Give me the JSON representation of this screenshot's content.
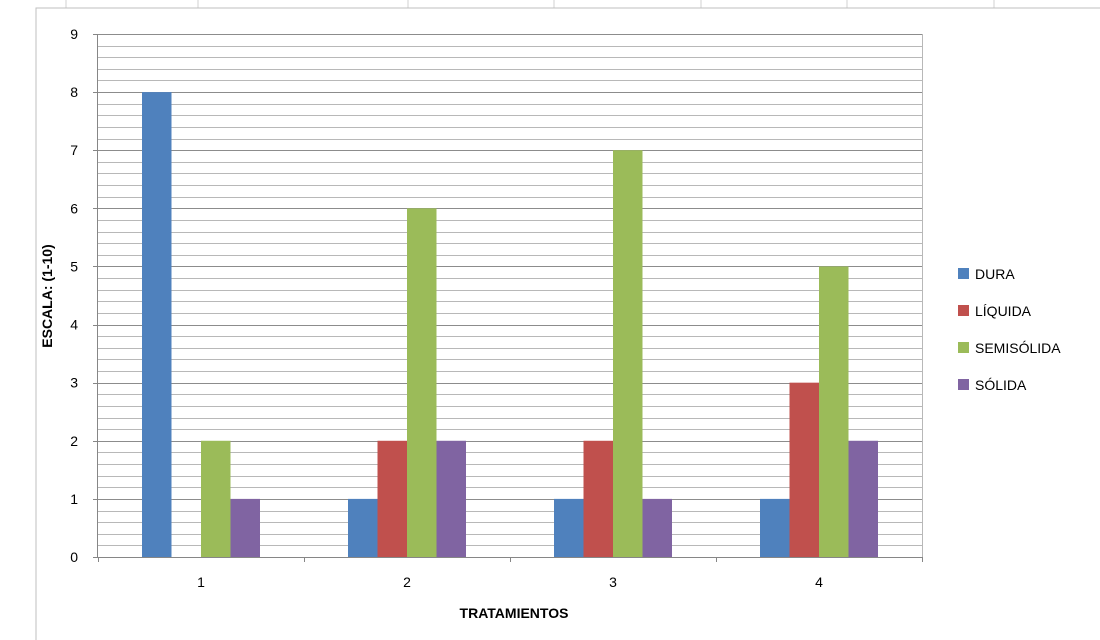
{
  "chart_data": {
    "type": "bar",
    "title": "",
    "xlabel": "TRATAMIENTOS",
    "ylabel": "ESCALA: (1-10)",
    "categories": [
      "1",
      "2",
      "3",
      "4"
    ],
    "series": [
      {
        "name": "DURA",
        "color": "#4f81bd",
        "values": [
          8,
          1,
          1,
          1
        ]
      },
      {
        "name": "LÍQUIDA",
        "color": "#c0504d",
        "values": [
          0,
          2,
          2,
          3
        ]
      },
      {
        "name": "SEMISÓLIDA",
        "color": "#9bbb59",
        "values": [
          2,
          6,
          7,
          5
        ]
      },
      {
        "name": "SÓLIDA",
        "color": "#8064a2",
        "values": [
          1,
          2,
          1,
          2
        ]
      }
    ],
    "ylim": [
      0,
      9
    ],
    "yticks": [
      0,
      1,
      2,
      3,
      4,
      5,
      6,
      7,
      8,
      9
    ],
    "minor_grid_step": 0.2,
    "grid": true,
    "legend_position": "right"
  }
}
